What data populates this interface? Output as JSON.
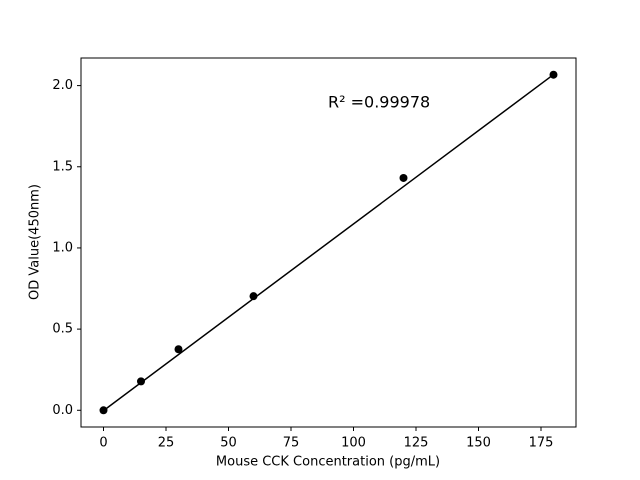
{
  "chart_data": {
    "type": "scatter",
    "x_label": "Mouse CCK Concentration (pg/mL)",
    "y_label": "OD Value(450nm)",
    "annotation": "R² =0.99978",
    "x": [
      0,
      15,
      30,
      60,
      120,
      180
    ],
    "series": [
      {
        "color": "#000000",
        "values": [
          0,
          0.178,
          0.376,
          0.703,
          1.431,
          2.067
        ]
      }
    ],
    "fit_line": {
      "color": "#000000",
      "x": [
        0,
        180
      ],
      "values": [
        -0.002,
        2.068
      ]
    },
    "xlim": [
      -9,
      189
    ],
    "xticks": [
      0,
      25,
      50,
      75,
      100,
      125,
      150,
      175
    ],
    "ylim": [
      -0.103,
      2.17
    ],
    "yticks": [
      {
        "value": 0,
        "label": "0.0"
      },
      0.5,
      {
        "value": 1,
        "label": "1.0"
      },
      1.5,
      {
        "value": 2,
        "label": "2.0"
      }
    ],
    "grid": false
  }
}
